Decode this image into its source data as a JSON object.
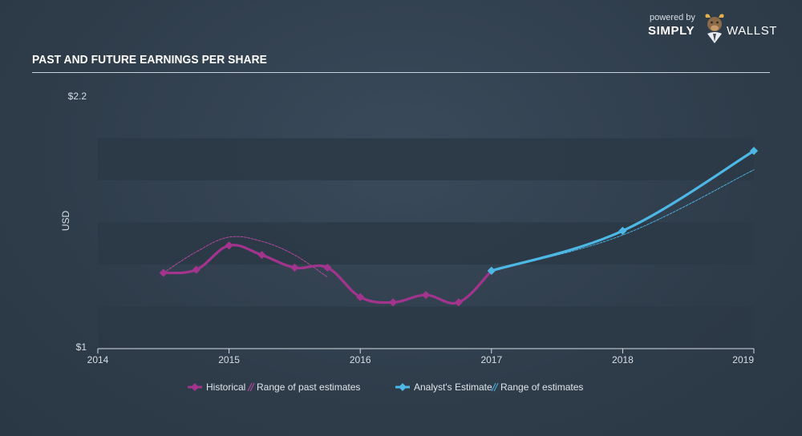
{
  "header": {
    "title": "PAST AND FUTURE EARNINGS PER SHARE"
  },
  "brand": {
    "powered_by": "powered by",
    "name_left": "SIMPLY",
    "name_right": "WALLST",
    "logo_icon": "bull-icon"
  },
  "legend": {
    "historical": "Historical",
    "past_range": "Range of past estimates",
    "analyst": "Analyst's Estimate",
    "future_range": "Range of estimates"
  },
  "colors": {
    "historical": "#a3348e",
    "past_range": "#c04aa8",
    "analyst": "#4db8e6",
    "future_range": "#4db8e6",
    "band": "#2c3845"
  },
  "chart_data": {
    "type": "line",
    "title": "PAST AND FUTURE EARNINGS PER SHARE",
    "ylabel": "USD",
    "ylim": [
      1,
      2.2
    ],
    "xlim": [
      2014,
      2019
    ],
    "y_ticks": [
      "$2.2",
      "$1"
    ],
    "x_ticks": [
      "2014",
      "2015",
      "2016",
      "2017",
      "2018",
      "2019"
    ],
    "series": [
      {
        "name": "Historical",
        "x": [
          2014.5,
          2014.75,
          2015.0,
          2015.25,
          2015.5,
          2015.75,
          2016.0,
          2016.25,
          2016.5,
          2016.75,
          2017.0
        ],
        "values": [
          1.36,
          1.375,
          1.49,
          1.445,
          1.385,
          1.385,
          1.245,
          1.22,
          1.255,
          1.22,
          1.37
        ]
      },
      {
        "name": "Range of past estimates",
        "x": [
          2014.5,
          2014.75,
          2015.0,
          2015.25,
          2015.5,
          2015.75
        ],
        "values": [
          1.36,
          1.46,
          1.53,
          1.51,
          1.445,
          1.34
        ]
      },
      {
        "name": "Analyst's Estimate",
        "x": [
          2017.0,
          2018.0,
          2019.0
        ],
        "values": [
          1.37,
          1.56,
          1.94
        ]
      },
      {
        "name": "Range of estimates",
        "x": [
          2017.0,
          2018.0,
          2019.0
        ],
        "values": [
          1.37,
          1.54,
          1.85
        ]
      }
    ]
  }
}
